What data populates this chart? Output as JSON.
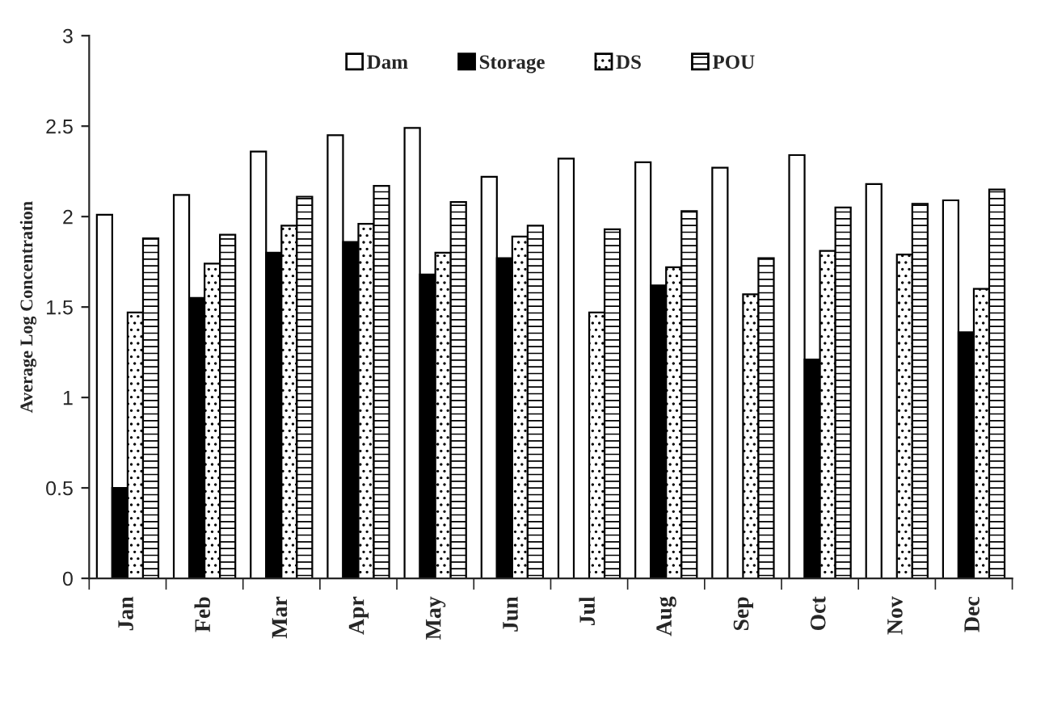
{
  "chart_data": {
    "type": "bar",
    "ylabel": "Average Log Concentration",
    "categories": [
      "Jan",
      "Feb",
      "Mar",
      "Apr",
      "May",
      "Jun",
      "Jul",
      "Aug",
      "Sep",
      "Oct",
      "Nov",
      "Dec"
    ],
    "series": [
      {
        "name": "Dam",
        "color": "#ffffff",
        "values": [
          2.01,
          2.12,
          2.36,
          2.45,
          2.49,
          2.22,
          2.32,
          2.3,
          2.27,
          2.34,
          2.18,
          2.09
        ]
      },
      {
        "name": "Storage",
        "color": "#000000",
        "values": [
          0.5,
          1.55,
          1.8,
          1.86,
          1.68,
          1.77,
          null,
          1.62,
          null,
          1.21,
          null,
          1.36
        ]
      },
      {
        "name": "DS",
        "color": "#000000",
        "values": [
          1.47,
          1.74,
          1.95,
          1.96,
          1.8,
          1.89,
          1.47,
          1.72,
          1.57,
          1.81,
          1.79,
          1.6
        ]
      },
      {
        "name": "POU",
        "color": "#000000",
        "values": [
          1.88,
          1.9,
          2.11,
          2.17,
          2.08,
          1.95,
          1.93,
          2.03,
          1.77,
          2.05,
          2.07,
          2.15
        ]
      }
    ],
    "ylim": [
      0,
      3
    ],
    "yticks": [
      0,
      0.5,
      1,
      1.5,
      2,
      2.5,
      3
    ],
    "grid": false,
    "legend": "top"
  }
}
